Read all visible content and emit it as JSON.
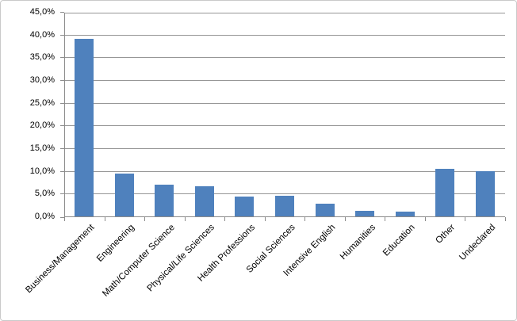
{
  "chart_data": {
    "type": "bar",
    "title": "",
    "xlabel": "",
    "ylabel": "",
    "categories": [
      "Business/Management",
      "Engineering",
      "Math/Computer Science",
      "Physical/Life Sciences",
      "Health Professions",
      "Social Sciences",
      "Intensive English",
      "Humanities",
      "Education",
      "Other",
      "Undeclared"
    ],
    "values": [
      39.0,
      9.4,
      7.0,
      6.7,
      4.4,
      4.5,
      2.8,
      1.2,
      1.0,
      10.4,
      9.9
    ],
    "ylim": [
      0,
      45
    ],
    "ytick_step": 5,
    "ytick_labels": [
      "0,0%",
      "5,0%",
      "10,0%",
      "15,0%",
      "20,0%",
      "25,0%",
      "30,0%",
      "35,0%",
      "40,0%",
      "45,0%"
    ],
    "decimal_separator": ",",
    "grid": true,
    "legend_position": "none",
    "bar_color": "#4F81BD",
    "gridline_color": "#969696",
    "axis_color": "#8C8C8C",
    "frame_border_color": "#C9C9C9",
    "background_color": "#FFFFFF"
  }
}
